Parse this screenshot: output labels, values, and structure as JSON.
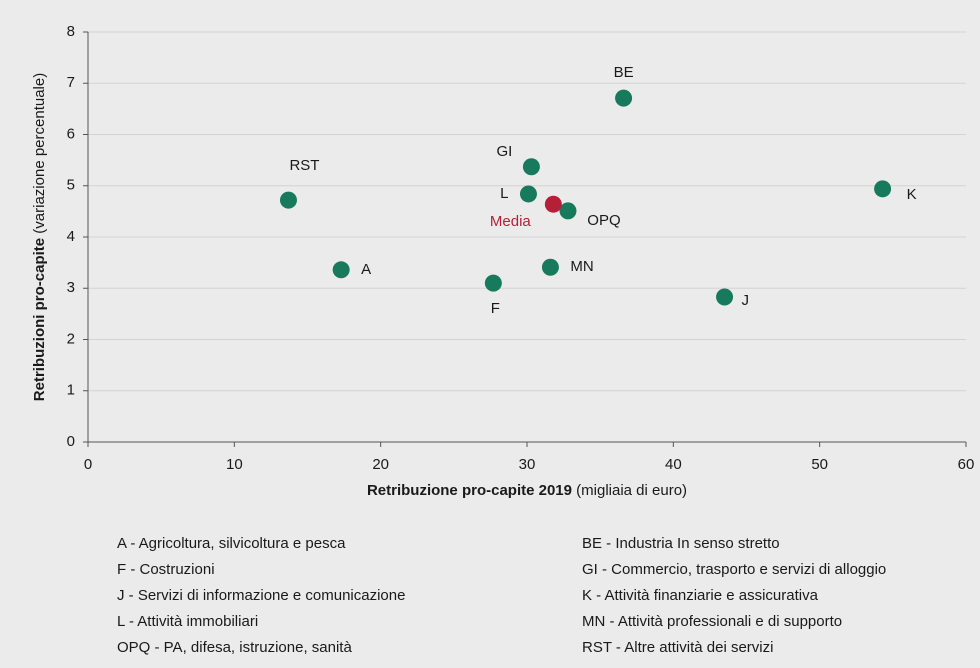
{
  "chart_data": {
    "type": "scatter",
    "xlabel_bold": "Retribuzione pro-capite 2019",
    "xlabel_rest": "(migliaia di euro)",
    "ylabel_bold": "Retribuzioni pro-capite",
    "ylabel_rest": "(variazione percentuale)",
    "xlim": [
      0,
      60
    ],
    "xticks": [
      0,
      10,
      20,
      30,
      40,
      50,
      60
    ],
    "ylim": [
      0,
      8
    ],
    "yticks": [
      0,
      1,
      2,
      3,
      4,
      5,
      6,
      7,
      8
    ],
    "grid": true,
    "series": [
      {
        "color": "#177a5c",
        "labels": [
          "A",
          "RST",
          "F",
          "L",
          "GI",
          "OPQ",
          "MN",
          "BE",
          "J",
          "K"
        ],
        "x": [
          17.3,
          13.7,
          27.7,
          30.1,
          30.3,
          32.8,
          31.6,
          36.6,
          43.5,
          54.3
        ],
        "y": [
          3.36,
          4.72,
          3.1,
          4.84,
          5.37,
          4.51,
          3.41,
          6.71,
          2.83,
          4.94
        ]
      },
      {
        "color": "#b51f37",
        "labels": [
          "Media"
        ],
        "x": [
          31.8
        ],
        "y": [
          4.64
        ]
      }
    ],
    "notes": [
      [
        "A - Agricoltura, silvicoltura e pesca",
        "BE - Industria In senso stretto"
      ],
      [
        "F - Costruzioni",
        "GI - Commercio, trasporto e servizi di alloggio"
      ],
      [
        "J - Servizi di informazione e comunicazione",
        "K - Attività finanziarie e assicurativa"
      ],
      [
        "L - Attività immobiliari",
        "MN - Attività professionali e di supporto"
      ],
      [
        "OPQ - PA, difesa, istruzione, sanità",
        "RST - Altre attività  dei servizi"
      ]
    ]
  }
}
